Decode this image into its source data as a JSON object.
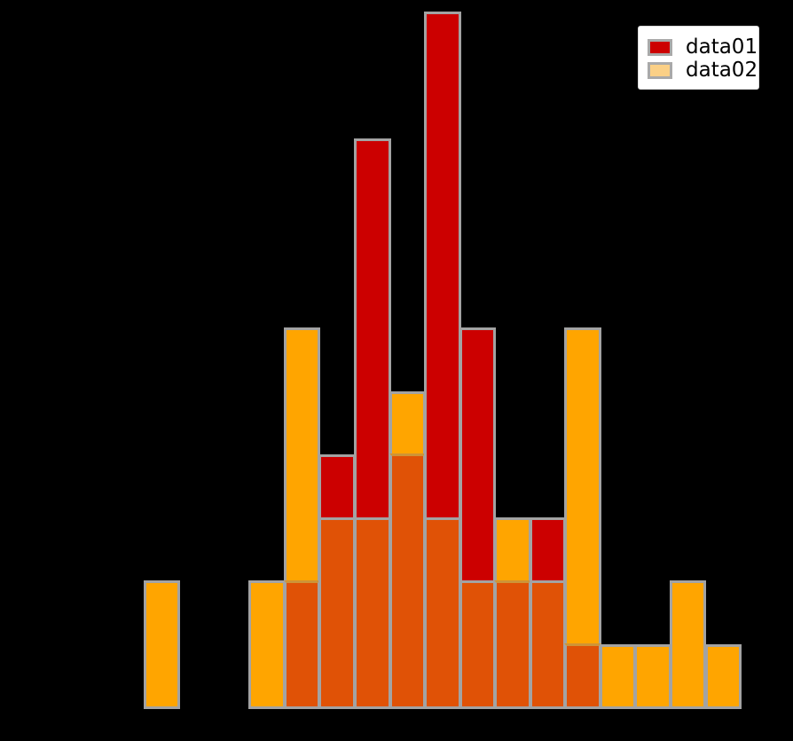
{
  "background_color": "#000000",
  "legend": {
    "items": [
      {
        "label": "data01",
        "swatch_color": "#CC0000"
      },
      {
        "label": "data02",
        "swatch_color": "#FBD086"
      }
    ],
    "box_color": "#FFFFFF",
    "swatch_border_color": "#A9A9A9"
  },
  "chart_data": {
    "type": "bar",
    "subtype": "overlaid-histogram",
    "title": "",
    "xlabel": "",
    "ylabel": "",
    "axes_text_visible": false,
    "grid": false,
    "legend_position": "upper right",
    "bins": 17,
    "bin_index": [
      1,
      2,
      3,
      4,
      5,
      6,
      7,
      8,
      9,
      10,
      11,
      12,
      13,
      14,
      15,
      16,
      17
    ],
    "series": [
      {
        "name": "data01",
        "color": "#CC0000",
        "counts": [
          0,
          0,
          0,
          0,
          2,
          4,
          9,
          4,
          11,
          6,
          2,
          3,
          1,
          0,
          0,
          0,
          0
        ]
      },
      {
        "name": "data02",
        "color": "#FFA500",
        "counts": [
          2,
          0,
          0,
          2,
          6,
          3,
          3,
          5,
          3,
          2,
          3,
          2,
          6,
          1,
          1,
          2,
          1
        ]
      }
    ],
    "overlap_color": "#E05206",
    "bar_edge_color": "#A3A3A3",
    "overlap_top_edge_tint": "#CE9437",
    "ylim": [
      0,
      11
    ]
  }
}
